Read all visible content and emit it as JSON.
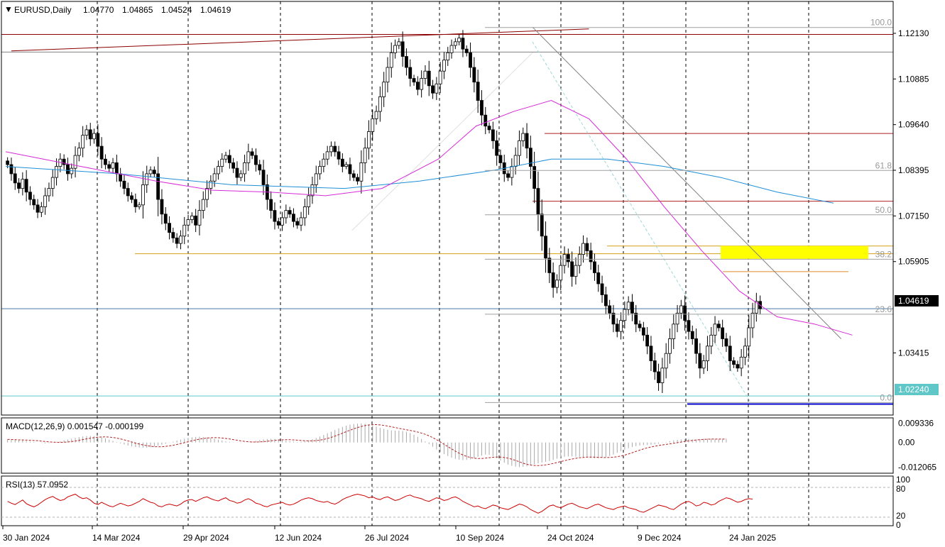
{
  "chart_data": [
    {
      "type": "candlestick",
      "symbol_header": "EURUSD,Daily",
      "ohlc": {
        "open": "1.04770",
        "high": "1.04865",
        "low": "1.04524",
        "close": "1.04619"
      },
      "y_ticks": [
        "1.12130",
        "1.10885",
        "1.09640",
        "1.08395",
        "1.07150",
        "1.05905",
        "1.03415"
      ],
      "ylim": [
        1.0172,
        1.13
      ],
      "x_ticks": [
        "30 Jan 2024",
        "14 Mar 2024",
        "29 Apr 2024",
        "12 Jun 2024",
        "26 Jul 2024",
        "10 Sep 2024",
        "24 Oct 2024",
        "9 Dec 2024",
        "24 Jan 2025"
      ],
      "current_price_label": "1.04619",
      "current_price": 1.04619,
      "level_label": "1.02240",
      "level_price": 1.0224,
      "fib_levels": [
        {
          "label": "100.0",
          "price": 1.1229
        },
        {
          "label": "61.8",
          "price": 1.0839
        },
        {
          "label": "50.0",
          "price": 1.0718
        },
        {
          "label": "38.2",
          "price": 1.0597
        },
        {
          "label": "23.6",
          "price": 1.0447
        },
        {
          "label": "0.0",
          "price": 1.0206
        }
      ],
      "horizontal_lines": [
        {
          "price": 1.121,
          "color": "#8b0000"
        },
        {
          "price": 1.1162,
          "color": "#808080"
        },
        {
          "price": 1.094,
          "color": "#b22222"
        },
        {
          "price": 1.0755,
          "color": "#b22222"
        },
        {
          "price": 1.0612,
          "color": "#d4a017"
        },
        {
          "price": 1.0633,
          "color": "#d4a017"
        },
        {
          "price": 1.0563,
          "color": "#e08a2a"
        },
        {
          "price": 1.0202,
          "color": "#0000cd"
        },
        {
          "price": 1.0224,
          "color": "#5fc7c7"
        },
        {
          "price": 1.04619,
          "color": "#4a7aa8"
        }
      ],
      "series_closes": [
        1.0855,
        1.083,
        1.0805,
        1.079,
        1.0815,
        1.078,
        1.076,
        1.0745,
        1.0725,
        1.074,
        1.077,
        1.079,
        1.082,
        1.085,
        1.087,
        1.0855,
        1.083,
        1.0845,
        1.088,
        1.09,
        1.0935,
        1.095,
        1.0925,
        1.094,
        1.0905,
        1.087,
        1.0855,
        1.0845,
        1.086,
        1.083,
        1.081,
        1.079,
        1.077,
        1.076,
        1.074,
        1.0745,
        1.08,
        1.083,
        1.084,
        1.083,
        1.076,
        1.072,
        1.0695,
        1.067,
        1.0655,
        1.064,
        1.066,
        1.069,
        1.0705,
        1.0715,
        1.069,
        1.073,
        1.076,
        1.079,
        1.081,
        1.083,
        1.085,
        1.087,
        1.088,
        1.086,
        1.0845,
        1.082,
        1.083,
        1.086,
        1.089,
        1.088,
        1.0855,
        1.084,
        1.08,
        1.076,
        1.073,
        1.07,
        1.069,
        1.071,
        1.073,
        1.072,
        1.07,
        1.069,
        1.071,
        1.074,
        1.077,
        1.08,
        1.083,
        1.085,
        1.087,
        1.089,
        1.0905,
        1.089,
        1.087,
        1.085,
        1.0855,
        1.083,
        1.082,
        1.081,
        1.086,
        1.09,
        1.0945,
        1.098,
        1.1,
        1.104,
        1.108,
        1.112,
        1.116,
        1.118,
        1.119,
        1.115,
        1.112,
        1.109,
        1.108,
        1.106,
        1.109,
        1.111,
        1.107,
        1.105,
        1.1075,
        1.111,
        1.114,
        1.116,
        1.118,
        1.119,
        1.12,
        1.117,
        1.116,
        1.112,
        1.108,
        1.103,
        1.099,
        1.096,
        1.095,
        1.092,
        1.088,
        1.086,
        1.083,
        1.082,
        1.085,
        1.088,
        1.092,
        1.094,
        1.09,
        1.085,
        1.079,
        1.072,
        1.066,
        1.06,
        1.056,
        1.052,
        1.054,
        1.058,
        1.061,
        1.059,
        1.055,
        1.058,
        1.061,
        1.064,
        1.062,
        1.059,
        1.056,
        1.053,
        1.05,
        1.047,
        1.045,
        1.042,
        1.04,
        1.043,
        1.046,
        1.048,
        1.045,
        1.042,
        1.041,
        1.039,
        1.036,
        1.032,
        1.029,
        1.026,
        1.03,
        1.034,
        1.038,
        1.042,
        1.045,
        1.047,
        1.043,
        1.04,
        1.038,
        1.034,
        1.03,
        1.032,
        1.036,
        1.039,
        1.042,
        1.041,
        1.038,
        1.036,
        1.032,
        1.031,
        1.03,
        1.033,
        1.036,
        1.041,
        1.045,
        1.0482,
        1.0462
      ],
      "ma_magenta": [
        [
          0,
          1.089
        ],
        [
          20,
          1.085
        ],
        [
          40,
          1.081
        ],
        [
          55,
          1.0785
        ],
        [
          70,
          1.078
        ],
        [
          85,
          1.077
        ],
        [
          100,
          1.079
        ],
        [
          115,
          1.087
        ],
        [
          125,
          1.096
        ],
        [
          135,
          1.1
        ],
        [
          145,
          1.103
        ],
        [
          155,
          1.098
        ],
        [
          165,
          1.087
        ],
        [
          175,
          1.074
        ],
        [
          185,
          1.062
        ],
        [
          195,
          1.051
        ],
        [
          205,
          1.044
        ],
        [
          215,
          1.042
        ],
        [
          225,
          1.039
        ]
      ],
      "ma_blue": [
        [
          0,
          1.085
        ],
        [
          30,
          1.083
        ],
        [
          60,
          1.08
        ],
        [
          90,
          1.079
        ],
        [
          110,
          1.081
        ],
        [
          130,
          1.084
        ],
        [
          145,
          1.087
        ],
        [
          160,
          1.087
        ],
        [
          175,
          1.085
        ],
        [
          190,
          1.082
        ],
        [
          205,
          1.078
        ],
        [
          220,
          1.075
        ]
      ],
      "trendlines": [
        {
          "from": [
            1.5,
            1.1165
          ],
          "to": [
            155,
            1.1225
          ],
          "color": "#8b0000"
        },
        {
          "from": [
            140,
            1.123
          ],
          "to": [
            222,
            1.038
          ],
          "color": "#808080"
        },
        {
          "from": [
            140,
            1.119
          ],
          "to": [
            198,
            1.0206
          ],
          "color": "#9fd6d6",
          "dash": true
        },
        {
          "from": [
            92,
            1.0675
          ],
          "to": [
            140,
            1.116
          ],
          "color": "#e0e0e0"
        }
      ],
      "highlight_zone": {
        "x_from": 203,
        "x_to": 245,
        "y_from": 1.0598,
        "y_to": 1.0633,
        "color": "#ffff00"
      }
    },
    {
      "type": "bar",
      "title": "MACD(12,26,9) 0.001547 -0.000199",
      "y_ticks": [
        "0.009336",
        "0.00",
        "-0.012065"
      ],
      "ylim": [
        -0.015,
        0.012
      ],
      "histogram": [
        0.0015,
        0.0014,
        0.0012,
        0.001,
        0.0011,
        0.0008,
        0.0005,
        0.0003,
        0.0,
        -0.0002,
        -0.0004,
        -0.0003,
        -0.0001,
        0.0002,
        0.0006,
        0.001,
        0.0014,
        0.0018,
        0.0022,
        0.0026,
        0.0029,
        0.0031,
        0.0032,
        0.0031,
        0.0029,
        0.0025,
        0.002,
        0.0014,
        0.0008,
        0.0002,
        -0.0004,
        -0.001,
        -0.0015,
        -0.0019,
        -0.0022,
        -0.0024,
        -0.0025,
        -0.0025,
        -0.0023,
        -0.002,
        -0.0016,
        -0.0011,
        -0.0006,
        -0.0001,
        0.0004,
        0.0009,
        0.0014,
        0.0018,
        0.0022,
        0.0025,
        0.0027,
        0.0028,
        0.0027,
        0.0025,
        0.0022,
        0.0018,
        0.0014,
        0.001,
        0.0006,
        0.0003,
        0.0001,
        -0.0001,
        -0.0002,
        -0.0001,
        0.0001,
        0.0004,
        0.0008,
        0.0012,
        0.0015,
        0.0017,
        0.0018,
        0.0017,
        0.0015,
        0.0012,
        0.0009,
        0.0006,
        0.0004,
        0.0003,
        0.0004,
        0.0007,
        0.0011,
        0.0016,
        0.0022,
        0.0029,
        0.0037,
        0.0045,
        0.0053,
        0.0061,
        0.0069,
        0.0076,
        0.0082,
        0.0087,
        0.009,
        0.0092,
        0.0093,
        0.0091,
        0.0088,
        0.0083,
        0.0077,
        0.0071,
        0.0066,
        0.0062,
        0.0059,
        0.0058,
        0.0058,
        0.0056,
        0.0052,
        0.0046,
        0.0038,
        0.0028,
        0.0017,
        0.0005,
        -0.0008,
        -0.0021,
        -0.0034,
        -0.0046,
        -0.0057,
        -0.0066,
        -0.0074,
        -0.008,
        -0.0084,
        -0.0086,
        -0.0085,
        -0.0082,
        -0.0077,
        -0.007,
        -0.0064,
        -0.0059,
        -0.006,
        -0.0066,
        -0.0076,
        -0.0088,
        -0.0099,
        -0.0108,
        -0.0114,
        -0.0118,
        -0.012,
        -0.0119,
        -0.0116,
        -0.0111,
        -0.0106,
        -0.0102,
        -0.0098,
        -0.0094,
        -0.009,
        -0.0085,
        -0.0079,
        -0.0074,
        -0.007,
        -0.0068,
        -0.0068,
        -0.0069,
        -0.007,
        -0.0072,
        -0.0074,
        -0.0076,
        -0.0077,
        -0.0077,
        -0.0075,
        -0.0071,
        -0.0066,
        -0.0059,
        -0.0051,
        -0.0043,
        -0.0035,
        -0.0028,
        -0.0022,
        -0.0018,
        -0.0015,
        -0.0013,
        -0.0012,
        -0.0011,
        -0.0009,
        -0.0006,
        -0.0002,
        0.0002,
        0.0006,
        0.001,
        0.0013,
        0.0015,
        0.0016,
        0.0016,
        0.0015,
        0.0015,
        0.0016,
        0.0018,
        0.0019,
        0.0018,
        0.0017,
        0.0016,
        0.0015,
        0.0015
      ],
      "signal_color": "#b22222"
    },
    {
      "type": "line",
      "title": "RSI(13) 57.0952",
      "y_ticks": [
        "100",
        "80",
        "20",
        "0"
      ],
      "ylim": [
        0,
        100
      ],
      "levels": [
        80,
        20
      ],
      "values": [
        52,
        48,
        45,
        50,
        55,
        47,
        43,
        40,
        44,
        50,
        56,
        60,
        63,
        58,
        54,
        56,
        62,
        65,
        68,
        62,
        58,
        60,
        55,
        48,
        45,
        50,
        46,
        42,
        40,
        44,
        48,
        45,
        42,
        44,
        48,
        52,
        58,
        54,
        50,
        48,
        42,
        40,
        44,
        46,
        44,
        42,
        46,
        52,
        55,
        56,
        52,
        56,
        60,
        62,
        58,
        55,
        53,
        57,
        60,
        54,
        52,
        48,
        50,
        55,
        58,
        54,
        48,
        46,
        42,
        40,
        44,
        46,
        48,
        50,
        46,
        44,
        46,
        50,
        55,
        58,
        60,
        58,
        54,
        52,
        50,
        52,
        48,
        46,
        50,
        56,
        60,
        63,
        66,
        68,
        66,
        64,
        60,
        62,
        58,
        56,
        60,
        62,
        58,
        54,
        56,
        60,
        64,
        66,
        62,
        60,
        58,
        54,
        52,
        56,
        60,
        58,
        54,
        56,
        60,
        62,
        58,
        52,
        48,
        44,
        40,
        42,
        38,
        36,
        40,
        44,
        42,
        38,
        36,
        34,
        38,
        42,
        46,
        44,
        40,
        34,
        30,
        26,
        30,
        36,
        42,
        44,
        40,
        38,
        42,
        46,
        48,
        44,
        40,
        38,
        36,
        40,
        44,
        46,
        42,
        38,
        36,
        34,
        38,
        40,
        42,
        38,
        36,
        34,
        30,
        28,
        32,
        36,
        40,
        44,
        42,
        40,
        36,
        34,
        40,
        46,
        50,
        52,
        48,
        42,
        44,
        50,
        48,
        44,
        46,
        52,
        56,
        60,
        58,
        54,
        50,
        52,
        56,
        58,
        57
      ]
    }
  ]
}
